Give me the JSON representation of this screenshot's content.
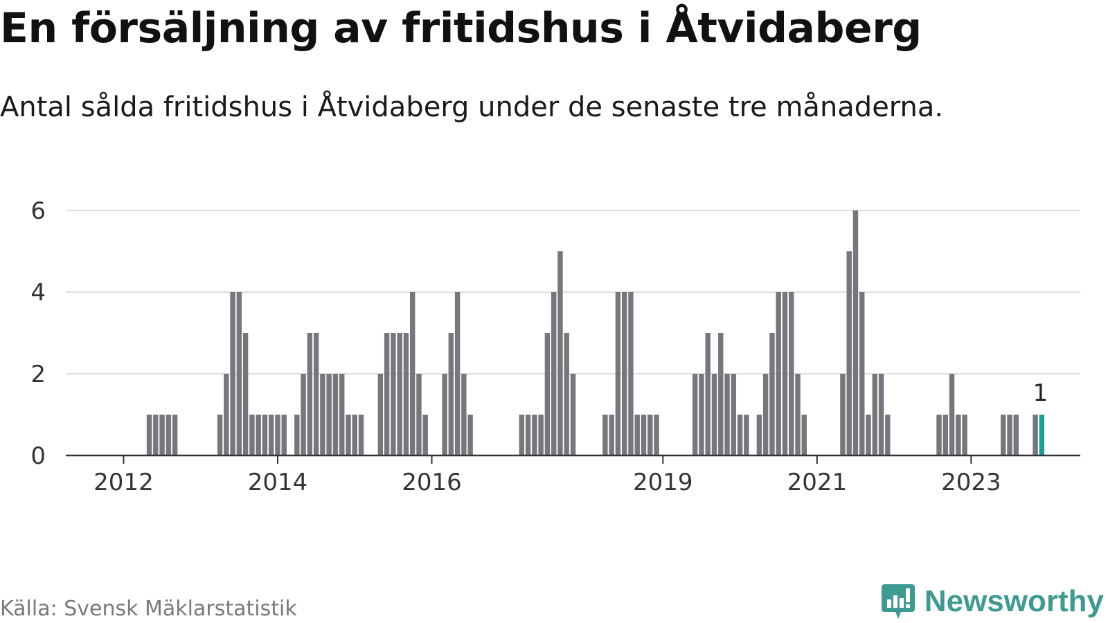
{
  "title": "En försäljning av fritidshus i Åtvidaberg",
  "subtitle": "Antal sålda fritidshus i Åtvidaberg under de senaste tre månaderna.",
  "source": "Källa: Svensk Mäklarstatistik",
  "brand": "Newsworthy",
  "colors": {
    "bar": "#76767c",
    "highlight": "#1a9e96",
    "grid": "#dedede",
    "axis": "#333333",
    "brand": "#3f9b92"
  },
  "chart_data": {
    "type": "bar",
    "title": "En försäljning av fritidshus i Åtvidaberg",
    "subtitle": "Antal sålda fritidshus i Åtvidaberg under de senaste tre månaderna.",
    "xlabel": "",
    "ylabel": "",
    "ylim": [
      0,
      6
    ],
    "yticks": [
      0,
      2,
      4,
      6
    ],
    "xticks": [
      {
        "label": "2012",
        "value": "2012-01"
      },
      {
        "label": "2014",
        "value": "2014-01"
      },
      {
        "label": "2016",
        "value": "2016-01"
      },
      {
        "label": "2019",
        "value": "2019-01"
      },
      {
        "label": "2021",
        "value": "2021-01"
      },
      {
        "label": "2023",
        "value": "2023-01"
      }
    ],
    "grid": true,
    "x_start": "2011-04",
    "x_end": "2024-06",
    "first_bar": "2012-05",
    "values": [
      1,
      1,
      1,
      1,
      1,
      0,
      0,
      0,
      0,
      0,
      0,
      1,
      2,
      4,
      4,
      3,
      1,
      1,
      1,
      1,
      1,
      1,
      0,
      1,
      2,
      3,
      3,
      2,
      2,
      2,
      2,
      1,
      1,
      1,
      0,
      0,
      2,
      3,
      3,
      3,
      3,
      4,
      2,
      1,
      0,
      0,
      2,
      3,
      4,
      2,
      1,
      0,
      0,
      0,
      0,
      0,
      0,
      0,
      1,
      1,
      1,
      1,
      3,
      4,
      5,
      3,
      2,
      0,
      0,
      0,
      0,
      1,
      1,
      4,
      4,
      4,
      1,
      1,
      1,
      1,
      0,
      0,
      0,
      0,
      0,
      2,
      2,
      3,
      2,
      3,
      2,
      2,
      1,
      1,
      0,
      1,
      2,
      3,
      4,
      4,
      4,
      2,
      1,
      0,
      0,
      0,
      0,
      0,
      2,
      5,
      6,
      4,
      1,
      2,
      2,
      1,
      0,
      0,
      0,
      0,
      0,
      0,
      0,
      1,
      1,
      2,
      1,
      1,
      0,
      0,
      0,
      0,
      0,
      1,
      1,
      1,
      0,
      0,
      1,
      1
    ],
    "highlight_last": true,
    "annotation": "1"
  }
}
